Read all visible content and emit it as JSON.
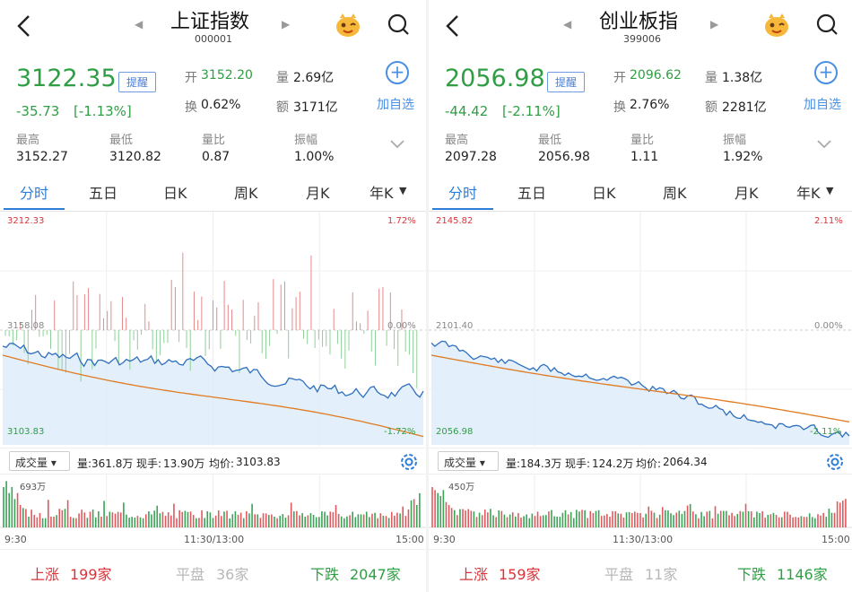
{
  "panels": [
    {
      "header": {
        "title": "上证指数",
        "code": "000001"
      },
      "quote": {
        "price": "3122.35",
        "change": "-35.73",
        "change_pct": "[-1.13%]",
        "remind_label": "提醒",
        "open_label": "开",
        "open": "3152.20",
        "volume_label": "量",
        "volume": "2.69亿",
        "turnover_label": "换",
        "turnover": "0.62%",
        "amount_label": "额",
        "amount": "3171亿",
        "add_label": "加自选"
      },
      "stats": [
        {
          "label": "最高",
          "value": "3152.27"
        },
        {
          "label": "最低",
          "value": "3120.82"
        },
        {
          "label": "量比",
          "value": "0.87"
        },
        {
          "label": "振幅",
          "value": "1.00%"
        }
      ],
      "tabs": [
        "分时",
        "五日",
        "日K",
        "周K",
        "月K",
        "年K"
      ],
      "chart": {
        "top_left": "3212.33",
        "top_right": "1.72%",
        "mid_left": "3158.08",
        "mid_right": "0.00%",
        "bottom_left": "3103.83",
        "bottom_right": "-1.72%"
      },
      "vol_bar": {
        "select_label": "成交量",
        "info": [
          {
            "label": "量:",
            "value": "361.8万"
          },
          {
            "label": "现手:",
            "value": "13.90万"
          },
          {
            "label": "均价:",
            "value": "3103.83"
          }
        ],
        "max_label": "693万"
      },
      "times": [
        "9:30",
        "11:30/13:00",
        "15:00"
      ],
      "breadth": {
        "up_label": "上涨",
        "up": "199家",
        "flat_label": "平盘",
        "flat": "36家",
        "down_label": "下跌",
        "down": "2047家"
      }
    },
    {
      "header": {
        "title": "创业板指",
        "code": "399006"
      },
      "quote": {
        "price": "2056.98",
        "change": "-44.42",
        "change_pct": "[-2.11%]",
        "remind_label": "提醒",
        "open_label": "开",
        "open": "2096.62",
        "volume_label": "量",
        "volume": "1.38亿",
        "turnover_label": "换",
        "turnover": "2.76%",
        "amount_label": "额",
        "amount": "2281亿",
        "add_label": "加自选"
      },
      "stats": [
        {
          "label": "最高",
          "value": "2097.28"
        },
        {
          "label": "最低",
          "value": "2056.98"
        },
        {
          "label": "量比",
          "value": "1.11"
        },
        {
          "label": "振幅",
          "value": "1.92%"
        }
      ],
      "tabs": [
        "分时",
        "五日",
        "日K",
        "周K",
        "月K",
        "年K"
      ],
      "chart": {
        "top_left": "2145.82",
        "top_right": "2.11%",
        "mid_left": "2101.40",
        "mid_right": "0.00%",
        "bottom_left": "2056.98",
        "bottom_right": "-2.11%"
      },
      "vol_bar": {
        "select_label": "成交量",
        "info": [
          {
            "label": "量:",
            "value": "184.3万"
          },
          {
            "label": "现手:",
            "value": "124.2万"
          },
          {
            "label": "均价:",
            "value": "2064.34"
          }
        ],
        "max_label": "450万"
      },
      "times": [
        "9:30",
        "11:30/13:00",
        "15:00"
      ],
      "breadth": {
        "up_label": "上涨",
        "up": "159家",
        "flat_label": "平盘",
        "flat": "11家",
        "down_label": "下跌",
        "down": "1146家"
      }
    }
  ],
  "colors": {
    "up": "#d9343a",
    "down": "#2f9e44",
    "price_line": "#2e6fbd",
    "avg_line": "#e07b22",
    "accent": "#2e7dd6"
  },
  "icons": [
    "back-arrow-icon",
    "prev-arrow-icon",
    "next-arrow-icon",
    "mascot-icon",
    "search-icon",
    "add-circle-icon",
    "chevron-down-icon",
    "dropdown-triangle-icon",
    "gear-icon"
  ]
}
